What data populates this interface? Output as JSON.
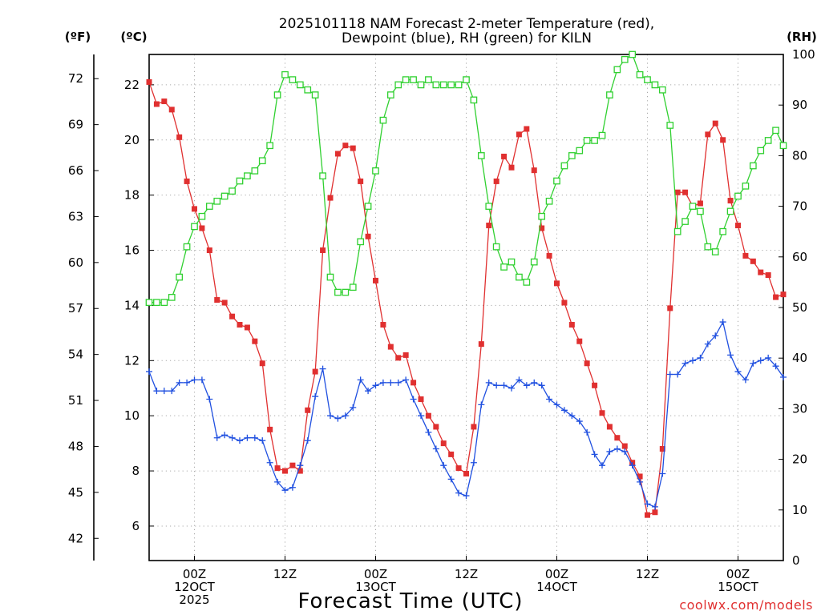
{
  "chart_data": {
    "type": "line",
    "title": [
      "2025101118 NAM Forecast 2-meter Temperature (red),",
      "Dewpoint (blue), RH (green) for KILN"
    ],
    "units": {
      "fahrenheit": "(ºF)",
      "celsius": "(ºC)",
      "rh": "(RH)"
    },
    "xlabel": "Forecast Time (UTC)",
    "credit": "coolwx.com/models",
    "x_range_hours": [
      18,
      102
    ],
    "ylim_celsius": [
      4.75,
      23.1
    ],
    "ylim_rh": [
      0,
      100
    ],
    "y_ticks_celsius": [
      6,
      8,
      10,
      12,
      14,
      16,
      18,
      20,
      22
    ],
    "y_ticks_fahrenheit": [
      42,
      45,
      48,
      51,
      54,
      57,
      60,
      63,
      66,
      69,
      72
    ],
    "y_ticks_rh": [
      0,
      10,
      20,
      30,
      40,
      50,
      60,
      70,
      80,
      90,
      100
    ],
    "x_ticks": [
      {
        "hour": 24,
        "lines": [
          "00Z",
          "12OCT",
          "2025"
        ]
      },
      {
        "hour": 36,
        "lines": [
          "12Z"
        ]
      },
      {
        "hour": 48,
        "lines": [
          "00Z",
          "13OCT"
        ]
      },
      {
        "hour": 60,
        "lines": [
          "12Z"
        ]
      },
      {
        "hour": 72,
        "lines": [
          "00Z",
          "14OCT"
        ]
      },
      {
        "hour": 84,
        "lines": [
          "12Z"
        ]
      },
      {
        "hour": 96,
        "lines": [
          "00Z",
          "15OCT"
        ]
      }
    ],
    "series": [
      {
        "name": "Temperature",
        "axis": "celsius",
        "color": "#e03030",
        "marker": "filled-square",
        "x": [
          18,
          19,
          20,
          21,
          22,
          23,
          24,
          25,
          26,
          27,
          28,
          29,
          30,
          31,
          32,
          33,
          34,
          35,
          36,
          37,
          38,
          39,
          40,
          41,
          42,
          43,
          44,
          45,
          46,
          47,
          48,
          49,
          50,
          51,
          52,
          53,
          54,
          55,
          56,
          57,
          58,
          59,
          60,
          61,
          62,
          63,
          64,
          65,
          66,
          67,
          68,
          69,
          70,
          71,
          72,
          73,
          74,
          75,
          76,
          77,
          78,
          79,
          80,
          81,
          82,
          83,
          84,
          85,
          86,
          87,
          88,
          89,
          90,
          91,
          92,
          93,
          94,
          95,
          96,
          97,
          98,
          99,
          100,
          101,
          102
        ],
        "values": [
          22.1,
          21.3,
          21.4,
          21.1,
          20.1,
          18.5,
          17.5,
          16.8,
          16.0,
          14.2,
          14.1,
          13.6,
          13.3,
          13.2,
          12.7,
          11.9,
          9.5,
          8.1,
          8.0,
          8.2,
          8.0,
          10.2,
          11.6,
          16.0,
          17.9,
          19.5,
          19.8,
          19.7,
          18.5,
          16.5,
          14.9,
          13.3,
          12.5,
          12.1,
          12.2,
          11.2,
          10.6,
          10.0,
          9.6,
          9.0,
          8.6,
          8.1,
          7.9,
          9.6,
          12.6,
          16.9,
          18.5,
          19.4,
          19.0,
          20.2,
          20.4,
          18.9,
          16.8,
          15.8,
          14.8,
          14.1,
          13.3,
          12.7,
          11.9,
          11.1,
          10.1,
          9.6,
          9.2,
          8.9,
          8.3,
          7.8,
          6.4,
          6.5,
          8.8,
          13.9,
          18.1,
          18.1,
          17.6,
          17.7,
          20.2,
          20.6,
          20.0,
          17.8,
          16.9,
          15.8,
          15.6,
          15.2,
          15.1,
          14.3,
          14.4
        ]
      },
      {
        "name": "Dewpoint",
        "axis": "celsius",
        "color": "#2050e0",
        "marker": "plus",
        "x": [
          18,
          19,
          20,
          21,
          22,
          23,
          24,
          25,
          26,
          27,
          28,
          29,
          30,
          31,
          32,
          33,
          34,
          35,
          36,
          37,
          38,
          39,
          40,
          41,
          42,
          43,
          44,
          45,
          46,
          47,
          48,
          49,
          50,
          51,
          52,
          53,
          54,
          55,
          56,
          57,
          58,
          59,
          60,
          61,
          62,
          63,
          64,
          65,
          66,
          67,
          68,
          69,
          70,
          71,
          72,
          73,
          74,
          75,
          76,
          77,
          78,
          79,
          80,
          81,
          82,
          83,
          84,
          85,
          86,
          87,
          88,
          89,
          90,
          91,
          92,
          93,
          94,
          95,
          96,
          97,
          98,
          99,
          100,
          101,
          102
        ],
        "values": [
          11.6,
          10.9,
          10.9,
          10.9,
          11.2,
          11.2,
          11.3,
          11.3,
          10.6,
          9.2,
          9.3,
          9.2,
          9.1,
          9.2,
          9.2,
          9.1,
          8.3,
          7.6,
          7.3,
          7.4,
          8.2,
          9.1,
          10.7,
          11.7,
          10.0,
          9.9,
          10.0,
          10.3,
          11.3,
          10.9,
          11.1,
          11.2,
          11.2,
          11.2,
          11.3,
          10.6,
          10.0,
          9.4,
          8.8,
          8.2,
          7.7,
          7.2,
          7.1,
          8.3,
          10.4,
          11.2,
          11.1,
          11.1,
          11.0,
          11.3,
          11.1,
          11.2,
          11.1,
          10.6,
          10.4,
          10.2,
          10.0,
          9.8,
          9.4,
          8.6,
          8.2,
          8.7,
          8.8,
          8.7,
          8.2,
          7.6,
          6.8,
          6.7,
          7.9,
          11.5,
          11.5,
          11.9,
          12.0,
          12.1,
          12.6,
          12.9,
          13.4,
          12.2,
          11.6,
          11.3,
          11.9,
          12.0,
          12.1,
          11.8,
          11.4
        ]
      },
      {
        "name": "RH",
        "axis": "rh",
        "color": "#30d030",
        "marker": "hollow-square",
        "x": [
          18,
          19,
          20,
          21,
          22,
          23,
          24,
          25,
          26,
          27,
          28,
          29,
          30,
          31,
          32,
          33,
          34,
          35,
          36,
          37,
          38,
          39,
          40,
          41,
          42,
          43,
          44,
          45,
          46,
          47,
          48,
          49,
          50,
          51,
          52,
          53,
          54,
          55,
          56,
          57,
          58,
          59,
          60,
          61,
          62,
          63,
          64,
          65,
          66,
          67,
          68,
          69,
          70,
          71,
          72,
          73,
          74,
          75,
          76,
          77,
          78,
          79,
          80,
          81,
          82,
          83,
          84,
          85,
          86,
          87,
          88,
          89,
          90,
          91,
          92,
          93,
          94,
          95,
          96,
          97,
          98,
          99,
          100,
          101,
          102
        ],
        "values": [
          51,
          51,
          51,
          52,
          56,
          62,
          66,
          68,
          70,
          71,
          72,
          73,
          75,
          76,
          77,
          79,
          82,
          92,
          96,
          95,
          94,
          93,
          92,
          76,
          56,
          53,
          53,
          54,
          63,
          70,
          77,
          87,
          92,
          94,
          95,
          95,
          94,
          95,
          94,
          94,
          94,
          94,
          95,
          91,
          80,
          70,
          62,
          58,
          59,
          56,
          55,
          59,
          68,
          71,
          75,
          78,
          80,
          81,
          83,
          83,
          84,
          92,
          97,
          99,
          100,
          96,
          95,
          94,
          93,
          86,
          65,
          67,
          70,
          69,
          62,
          61,
          65,
          69,
          72,
          74,
          78,
          81,
          83,
          85,
          82
        ]
      }
    ]
  }
}
